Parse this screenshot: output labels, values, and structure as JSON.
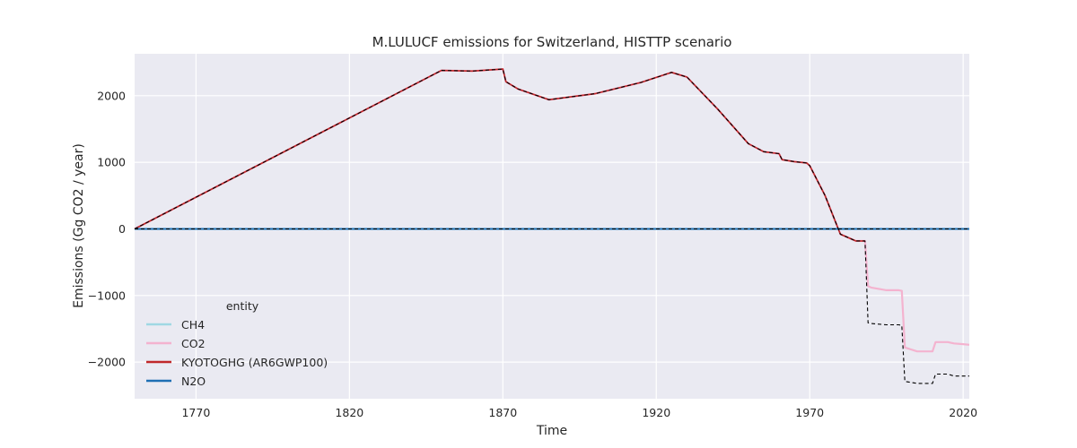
{
  "chart_data": {
    "type": "line",
    "title": "M.LULUCF emissions for Switzerland, HISTTP scenario",
    "xlabel": "Time",
    "ylabel": "Emissions (Gg CO2 / year)",
    "xlim": [
      1750,
      2022
    ],
    "ylim": [
      -2550,
      2630
    ],
    "xticks": [
      1770,
      1820,
      1870,
      1920,
      1970,
      2020
    ],
    "yticks": [
      -2000,
      -1000,
      0,
      1000,
      2000
    ],
    "grid": true,
    "legend": {
      "title": "entity",
      "placement": "lower-left",
      "entries": [
        "CH4",
        "CO2",
        "KYOTOGHG (AR6GWP100)",
        "N2O"
      ]
    },
    "series": [
      {
        "name": "CH4",
        "color": "#9fd8e3",
        "style": "solid",
        "x": [
          1750,
          2022
        ],
        "y": [
          0,
          0
        ]
      },
      {
        "name": "CO2",
        "color": "#f4b3cf",
        "style": "solid",
        "x": [
          1750,
          1850,
          1860,
          1870,
          1871,
          1875,
          1885,
          1900,
          1915,
          1925,
          1930,
          1940,
          1950,
          1955,
          1960,
          1961,
          1965,
          1969,
          1970,
          1975,
          1978,
          1980,
          1985,
          1988,
          1989,
          1990,
          1995,
          1999,
          2000,
          2001,
          2005,
          2010,
          2011,
          2015,
          2017,
          2020,
          2022
        ],
        "y": [
          0,
          2380,
          2370,
          2400,
          2210,
          2100,
          1940,
          2030,
          2200,
          2350,
          2280,
          1800,
          1280,
          1160,
          1130,
          1040,
          1010,
          990,
          950,
          500,
          150,
          -80,
          -180,
          -180,
          -860,
          -880,
          -920,
          -920,
          -930,
          -1780,
          -1840,
          -1840,
          -1700,
          -1700,
          -1720,
          -1730,
          -1740
        ]
      },
      {
        "name": "KYOTOGHG (AR6GWP100)",
        "color": "#c0282a",
        "style": "solid",
        "x": [
          1750,
          1850,
          1860,
          1870,
          1871,
          1875,
          1885,
          1900,
          1915,
          1925,
          1930,
          1940,
          1950,
          1955,
          1960,
          1961,
          1965,
          1969,
          1970,
          1975,
          1978,
          1980,
          1985,
          1988
        ],
        "y": [
          0,
          2380,
          2370,
          2400,
          2210,
          2100,
          1940,
          2030,
          2200,
          2350,
          2280,
          1800,
          1280,
          1160,
          1130,
          1040,
          1010,
          990,
          950,
          500,
          150,
          -80,
          -180,
          -180
        ]
      },
      {
        "name": "N2O",
        "color": "#1f6fb4",
        "style": "solid",
        "x": [
          1750,
          2022
        ],
        "y": [
          0,
          0
        ]
      },
      {
        "name": "",
        "color": "#000000",
        "style": "dashed",
        "x": [
          1750,
          2022
        ],
        "y": [
          0,
          0
        ]
      },
      {
        "name": "",
        "color": "#000000",
        "style": "dashed",
        "x": [
          1750,
          1850,
          1860,
          1870,
          1871,
          1875,
          1885,
          1900,
          1915,
          1925,
          1930,
          1940,
          1950,
          1955,
          1960,
          1961,
          1965,
          1969,
          1970,
          1975,
          1978,
          1980,
          1985,
          1988,
          1989,
          1990,
          1995,
          1999,
          2000,
          2001,
          2005,
          2010,
          2011,
          2015,
          2017,
          2020,
          2022
        ],
        "y": [
          0,
          2380,
          2370,
          2400,
          2210,
          2100,
          1940,
          2030,
          2200,
          2350,
          2280,
          1800,
          1280,
          1160,
          1130,
          1040,
          1010,
          990,
          950,
          500,
          150,
          -80,
          -180,
          -180,
          -1410,
          -1420,
          -1440,
          -1440,
          -1450,
          -2290,
          -2320,
          -2320,
          -2180,
          -2180,
          -2210,
          -2210,
          -2210
        ]
      }
    ]
  }
}
